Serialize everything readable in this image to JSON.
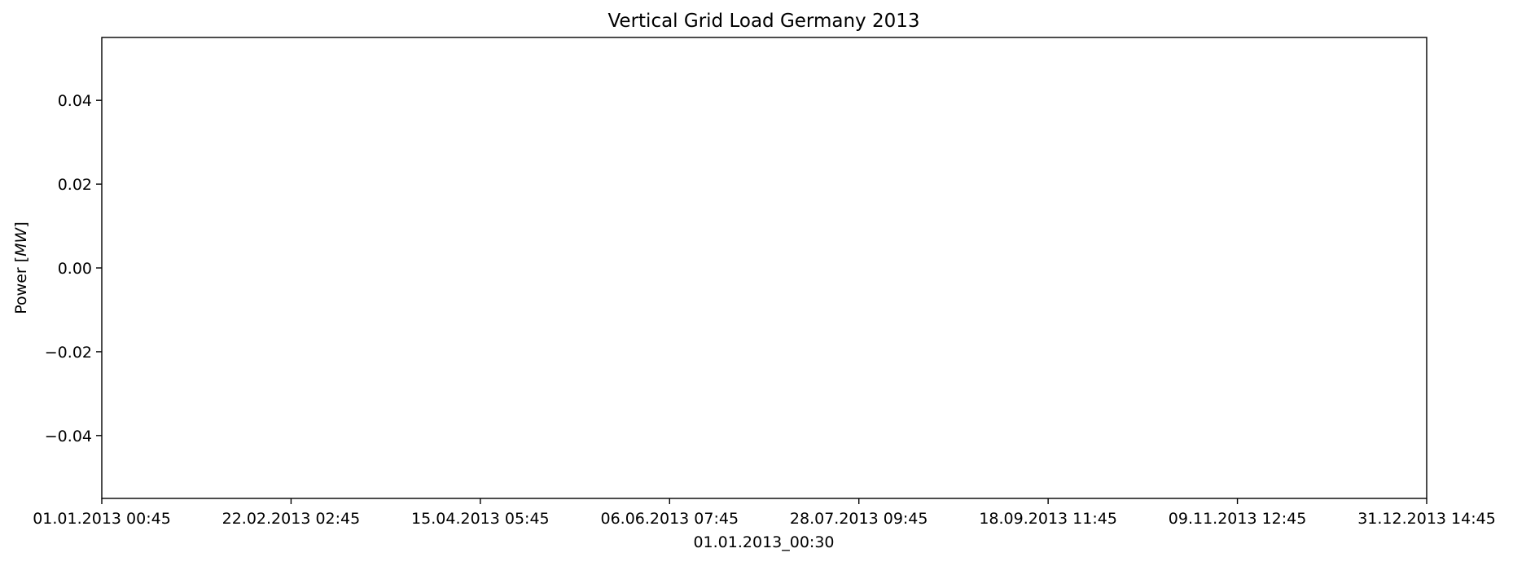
{
  "chart_data": {
    "type": "line",
    "title": "Vertical Grid Load Germany 2013",
    "xlabel": "01.01.2013_00:30",
    "ylabel": {
      "prefix": "Power [",
      "unit": "MW",
      "suffix": "]"
    },
    "x_tick_labels": [
      "01.01.2013 00:45",
      "22.02.2013 02:45",
      "15.04.2013 05:45",
      "06.06.2013 07:45",
      "28.07.2013 09:45",
      "18.09.2013 11:45",
      "09.11.2013 12:45",
      "31.12.2013 14:45"
    ],
    "y_ticks": [
      0.04,
      0.02,
      0.0,
      -0.02,
      -0.04
    ],
    "y_tick_labels": [
      "0.04",
      "0.02",
      "0.00",
      "−0.02",
      "−0.04"
    ],
    "ylim": [
      -0.055,
      0.055
    ],
    "grid": false,
    "series": [],
    "colors": {
      "axes": "#000000",
      "background": "#ffffff"
    }
  }
}
